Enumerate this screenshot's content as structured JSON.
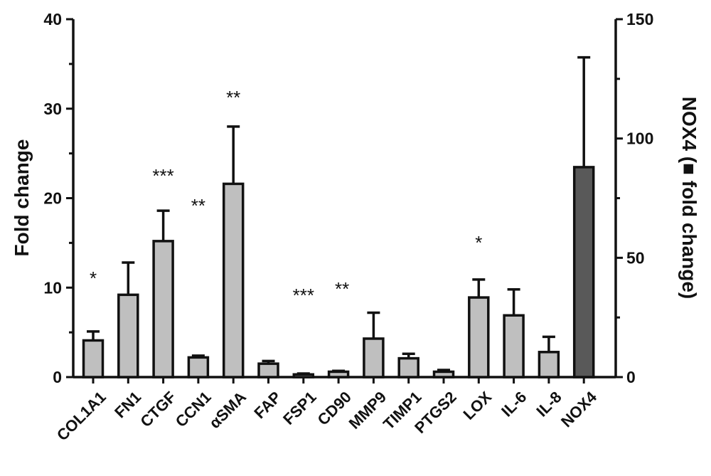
{
  "chart_data": {
    "type": "bar",
    "categories": [
      "COL1A1",
      "FN1",
      "CTGF",
      "CCN1",
      "αSMA",
      "FAP",
      "FSP1",
      "CD90",
      "MMP9",
      "TIMP1",
      "PTGS2",
      "LOX",
      "IL-6",
      "IL-8",
      "NOX4"
    ],
    "values": [
      4.1,
      9.2,
      15.2,
      2.2,
      21.6,
      1.5,
      0.3,
      0.6,
      4.3,
      2.1,
      0.6,
      8.9,
      6.9,
      2.8,
      88
    ],
    "errors": [
      1.0,
      3.6,
      3.4,
      0.2,
      6.4,
      0.3,
      0.1,
      0.1,
      2.9,
      0.5,
      0.2,
      2.0,
      2.9,
      1.7,
      46
    ],
    "axis": [
      "left",
      "left",
      "left",
      "left",
      "left",
      "left",
      "left",
      "left",
      "left",
      "left",
      "left",
      "left",
      "left",
      "left",
      "right"
    ],
    "significance": [
      "*",
      "",
      "***",
      "**",
      "**",
      "",
      "***",
      "**",
      "",
      "",
      "",
      "*",
      "",
      "",
      ""
    ],
    "ylabel": "Fold change",
    "ylabel_right": "NOX4 (■ fold change)",
    "ylim": [
      0,
      40
    ],
    "ylim_right": [
      0,
      150
    ],
    "yticks": [
      0,
      10,
      20,
      30,
      40
    ],
    "yticks_right": [
      0,
      50,
      100,
      150
    ],
    "colors": {
      "left_bars": "#bfbfbf",
      "right_bars": "#595959",
      "outline": "#111111"
    },
    "grid": false
  }
}
